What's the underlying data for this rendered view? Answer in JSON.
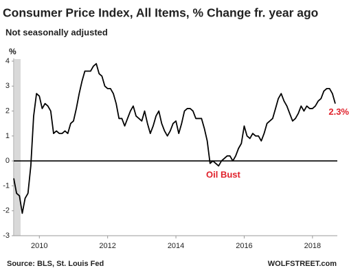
{
  "chart_data": {
    "type": "line",
    "title": "Consumer Price Index, All Items, % Change fr. year ago",
    "subtitle": "Not seasonally adjusted",
    "y_unit": "%",
    "annotations": [
      "Oil Bust"
    ],
    "source": "Source: BLS, St. Louis Fed",
    "credit": "WOLFSTREET.com",
    "color": "#000000",
    "x": [
      2009.25,
      2009.333,
      2009.417,
      2009.5,
      2009.583,
      2009.667,
      2009.75,
      2009.833,
      2009.917,
      2010,
      2010.083,
      2010.167,
      2010.25,
      2010.333,
      2010.417,
      2010.5,
      2010.583,
      2010.667,
      2010.75,
      2010.833,
      2010.917,
      2011,
      2011.083,
      2011.167,
      2011.25,
      2011.333,
      2011.417,
      2011.5,
      2011.583,
      2011.667,
      2011.75,
      2011.833,
      2011.917,
      2012,
      2012.083,
      2012.167,
      2012.25,
      2012.333,
      2012.417,
      2012.5,
      2012.583,
      2012.667,
      2012.75,
      2012.833,
      2012.917,
      2013,
      2013.083,
      2013.167,
      2013.25,
      2013.333,
      2013.417,
      2013.5,
      2013.583,
      2013.667,
      2013.75,
      2013.833,
      2013.917,
      2014,
      2014.083,
      2014.167,
      2014.25,
      2014.333,
      2014.417,
      2014.5,
      2014.583,
      2014.667,
      2014.75,
      2014.833,
      2014.917,
      2015,
      2015.083,
      2015.167,
      2015.25,
      2015.333,
      2015.417,
      2015.5,
      2015.583,
      2015.667,
      2015.75,
      2015.833,
      2015.917,
      2016,
      2016.083,
      2016.167,
      2016.25,
      2016.333,
      2016.417,
      2016.5,
      2016.583,
      2016.667,
      2016.75,
      2016.833,
      2016.917,
      2017,
      2017.083,
      2017.167,
      2017.25,
      2017.333,
      2017.417,
      2017.5,
      2017.583,
      2017.667,
      2017.75,
      2017.833,
      2017.917,
      2018,
      2018.083,
      2018.167,
      2018.25,
      2018.333,
      2018.417,
      2018.5,
      2018.583,
      2018.667
    ],
    "values": [
      -0.7,
      -1.3,
      -1.4,
      -2.1,
      -1.5,
      -1.3,
      -0.2,
      1.8,
      2.7,
      2.6,
      2.1,
      2.3,
      2.2,
      2.0,
      1.1,
      1.2,
      1.1,
      1.1,
      1.2,
      1.1,
      1.5,
      1.6,
      2.1,
      2.7,
      3.2,
      3.6,
      3.6,
      3.6,
      3.8,
      3.9,
      3.5,
      3.4,
      3.0,
      2.9,
      2.9,
      2.7,
      2.3,
      1.7,
      1.7,
      1.4,
      1.7,
      2.0,
      2.2,
      1.8,
      1.7,
      1.6,
      2.0,
      1.5,
      1.1,
      1.4,
      1.8,
      2.0,
      1.5,
      1.2,
      1.0,
      1.2,
      1.5,
      1.6,
      1.1,
      1.5,
      2.0,
      2.1,
      2.1,
      2.0,
      1.7,
      1.7,
      1.7,
      1.3,
      0.8,
      -0.1,
      0.0,
      -0.1,
      -0.2,
      0.0,
      0.1,
      0.2,
      0.2,
      0.0,
      0.2,
      0.5,
      0.7,
      1.4,
      1.0,
      0.9,
      1.1,
      1.0,
      1.0,
      0.8,
      1.1,
      1.5,
      1.6,
      1.7,
      2.1,
      2.5,
      2.7,
      2.4,
      2.2,
      1.9,
      1.6,
      1.7,
      1.9,
      2.2,
      2.0,
      2.2,
      2.1,
      2.1,
      2.2,
      2.4,
      2.5,
      2.8,
      2.9,
      2.9,
      2.7,
      2.3
    ],
    "value_labels": [
      null,
      null,
      null,
      null,
      null,
      null,
      null,
      null,
      null,
      null,
      null,
      null,
      null,
      null,
      null,
      null,
      null,
      null,
      null,
      null,
      null,
      null,
      null,
      null,
      null,
      null,
      null,
      null,
      null,
      null,
      null,
      null,
      null,
      null,
      null,
      null,
      null,
      null,
      null,
      null,
      null,
      null,
      null,
      null,
      null,
      null,
      null,
      null,
      null,
      null,
      null,
      null,
      null,
      null,
      null,
      null,
      null,
      null,
      null,
      null,
      null,
      null,
      null,
      null,
      null,
      null,
      null,
      null,
      null,
      null,
      null,
      null,
      null,
      null,
      null,
      null,
      null,
      null,
      null,
      null,
      null,
      null,
      null,
      null,
      null,
      null,
      null,
      null,
      null,
      null,
      null,
      null,
      null,
      null,
      null,
      null,
      null,
      null,
      null,
      null,
      null,
      null,
      null,
      null,
      null,
      null,
      null,
      null,
      null,
      null,
      null,
      null,
      null,
      "2.3%"
    ],
    "xlim": [
      2009.25,
      2018.667
    ],
    "xticks": [
      2010,
      2012,
      2014,
      2016,
      2018
    ],
    "ylim": [
      -3,
      4
    ],
    "yticks": [
      4,
      3,
      2,
      1,
      0,
      -1,
      -2,
      -3
    ],
    "grid": false
  }
}
